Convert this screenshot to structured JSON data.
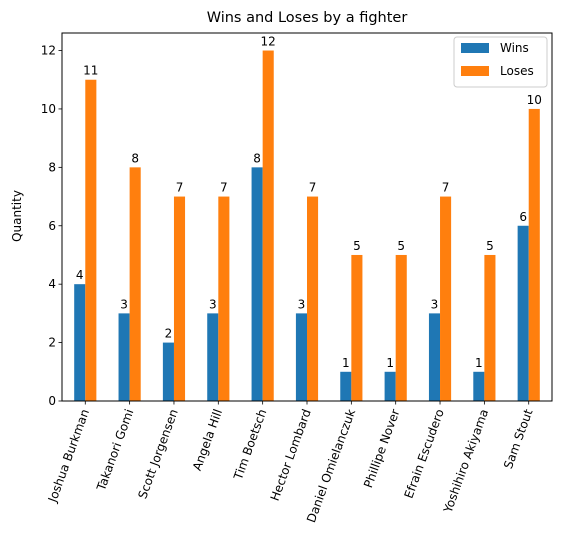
{
  "chart_data": {
    "type": "bar",
    "title": "Wins and Loses by a fighter",
    "xlabel": "",
    "ylabel": "Quantity",
    "ylim": [
      0,
      12.6
    ],
    "yticks": [
      0,
      2,
      4,
      6,
      8,
      10,
      12
    ],
    "categories": [
      "Joshua Burkman",
      "Takanori Gomi",
      "Scott Jorgensen",
      "Angela Hill",
      "Tim Boetsch",
      "Hector Lombard",
      "Daniel Omielanczuk",
      "Phillipe Nover",
      "Efrain Escudero",
      "Yoshihiro Akiyama",
      "Sam Stout"
    ],
    "series": [
      {
        "name": "Wins",
        "color": "#1f77b4",
        "values": [
          4,
          3,
          2,
          3,
          8,
          3,
          1,
          1,
          3,
          1,
          6
        ]
      },
      {
        "name": "Loses",
        "color": "#ff7f0e",
        "values": [
          11,
          8,
          7,
          7,
          12,
          7,
          5,
          5,
          7,
          5,
          10
        ]
      }
    ],
    "legend": {
      "position": "top-right"
    },
    "grid": false,
    "x_tick_rotation": 70
  }
}
